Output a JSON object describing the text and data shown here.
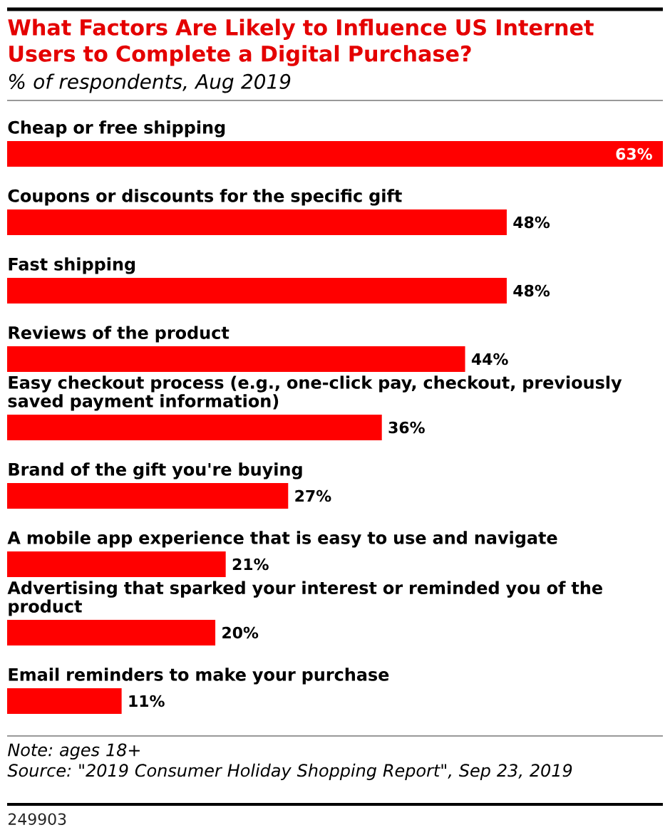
{
  "chart_data": {
    "type": "bar",
    "orientation": "horizontal",
    "title": "What Factors Are Likely to Influence US Internet Users to Complete a Digital Purchase?",
    "subtitle": "% of respondents, Aug 2019",
    "categories": [
      "Cheap or free shipping",
      "Coupons or discounts for the specific gift",
      "Fast shipping",
      "Reviews of the product",
      "Easy checkout process (e.g., one-click pay, checkout, previously saved payment information)",
      "Brand of the gift you're buying",
      "A mobile app experience that is easy to use and navigate",
      "Advertising that sparked your interest or reminded you of the product",
      "Email reminders to make your purchase"
    ],
    "values": [
      63,
      48,
      48,
      44,
      36,
      27,
      21,
      20,
      11
    ],
    "color": "#ff0000",
    "value_labels": [
      "63%",
      "48%",
      "48%",
      "44%",
      "36%",
      "27%",
      "21%",
      "20%",
      "11%"
    ],
    "annotations": [
      "Note: ages 18+",
      "Source: \"2019 Consumer Holiday Shopping Report\", Sep 23, 2019",
      "249903"
    ]
  }
}
